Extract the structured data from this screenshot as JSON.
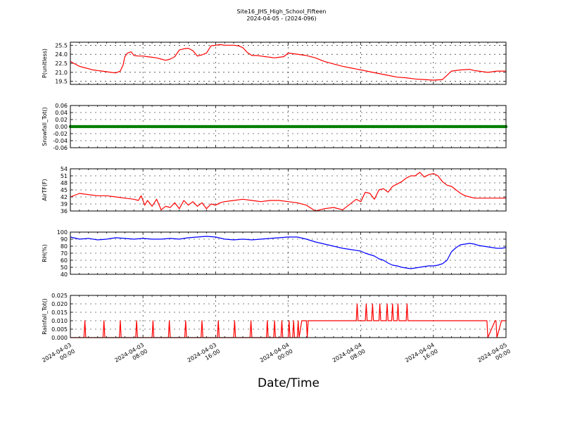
{
  "figure": {
    "title": "Site16_JHS_High_School_Fifteen",
    "subtitle": "2024-04-05 - (2024-096)",
    "xlabel": "Date/Time"
  },
  "x_ticks": [
    "2024-04-03\n00:00",
    "2024-04-03\n08:00",
    "2024-04-03\n16:00",
    "2024-04-04\n00:00",
    "2024-04-04\n08:00",
    "2024-04-04\n16:00",
    "2024-04-05\n00:00"
  ],
  "chart_data": [
    {
      "type": "line",
      "ylabel": "P(unitless)",
      "ylim": [
        19.0,
        26.0
      ],
      "yticks": [
        19.5,
        21.0,
        22.5,
        24.0,
        25.5
      ],
      "grid": true,
      "color": "#ff0000",
      "x": [
        0,
        0.5,
        1,
        1.5,
        2,
        2.5,
        3,
        3.5,
        4,
        4.5,
        5,
        5.5,
        5.8,
        6,
        6.3,
        6.7,
        7,
        7.5,
        8,
        8.5,
        9,
        9.5,
        10,
        10.5,
        11,
        11.5,
        12,
        12.5,
        13,
        13.5,
        14,
        14.5,
        15,
        15.5,
        16,
        16.5,
        17,
        17.5,
        18,
        18.5,
        19,
        19.5,
        20,
        20.5,
        21,
        21.5,
        22,
        22.5,
        23,
        23.5,
        24,
        25,
        26,
        27,
        28,
        29,
        30,
        31,
        32,
        33,
        34,
        35,
        36,
        37,
        38,
        39,
        40,
        41,
        42,
        43,
        44,
        44.5,
        45,
        45.5,
        46,
        46.5,
        47,
        47.5,
        48
      ],
      "y": [
        22.8,
        22.4,
        22.0,
        21.8,
        21.6,
        21.4,
        21.3,
        21.2,
        21.1,
        21.0,
        20.9,
        21.2,
        22.2,
        23.6,
        24.2,
        24.4,
        23.8,
        23.7,
        23.7,
        23.6,
        23.5,
        23.4,
        23.2,
        23.0,
        23.2,
        23.6,
        24.7,
        24.9,
        25.0,
        24.6,
        23.7,
        23.9,
        24.2,
        25.4,
        25.5,
        25.6,
        25.5,
        25.5,
        25.5,
        25.4,
        25.1,
        24.3,
        23.8,
        23.8,
        23.7,
        23.6,
        23.5,
        23.4,
        23.5,
        23.6,
        24.2,
        24.0,
        23.8,
        23.4,
        22.8,
        22.4,
        22.0,
        21.7,
        21.4,
        21.1,
        20.8,
        20.5,
        20.2,
        20.1,
        19.9,
        19.8,
        19.7,
        19.8,
        21.2,
        21.4,
        21.5,
        21.3,
        21.2,
        21.1,
        21.0,
        21.1,
        21.2,
        21.2,
        21.2
      ]
    },
    {
      "type": "scatter",
      "ylabel": "Snowfall_Tot()",
      "ylim": [
        -0.06,
        0.06
      ],
      "yticks": [
        -0.06,
        -0.04,
        -0.02,
        0.0,
        0.02,
        0.04,
        0.06
      ],
      "grid": true,
      "color": "#008000",
      "x_range": [
        0,
        48
      ],
      "constant_value": 0.0
    },
    {
      "type": "line",
      "ylabel": "AirTF(F)",
      "ylim": [
        36,
        54
      ],
      "yticks": [
        36,
        39,
        42,
        45,
        48,
        51,
        54
      ],
      "grid": true,
      "color": "#ff0000",
      "x": [
        0,
        1,
        2,
        3,
        4,
        5,
        6,
        7,
        7.5,
        7.8,
        8.2,
        8.5,
        9,
        9.5,
        10,
        10.5,
        11,
        11.5,
        12,
        12.5,
        13,
        13.5,
        14,
        14.5,
        15,
        15.5,
        16,
        16.5,
        17,
        18,
        19,
        20,
        21,
        22,
        23,
        24,
        25,
        26,
        27,
        28,
        29,
        30,
        30.5,
        31,
        31.5,
        32,
        32.5,
        33,
        33.5,
        34,
        34.5,
        35,
        35.5,
        36,
        36.5,
        37,
        37.5,
        38,
        38.5,
        39,
        39.5,
        40,
        40.5,
        41,
        41.5,
        42,
        42.5,
        43,
        43.5,
        44,
        44.5,
        45,
        45.5,
        46,
        46.5,
        47,
        47.5,
        48
      ],
      "y": [
        42.0,
        43.5,
        43.0,
        42.5,
        42.5,
        42.0,
        41.5,
        41.0,
        40.5,
        42.5,
        38.5,
        40.5,
        38.0,
        41.0,
        36.5,
        38.0,
        37.5,
        39.5,
        37.0,
        40.5,
        38.5,
        40.0,
        38.0,
        39.5,
        37.0,
        39.0,
        38.5,
        39.5,
        40.0,
        40.5,
        41.0,
        40.5,
        40.0,
        40.5,
        40.5,
        40.0,
        39.5,
        38.5,
        36.0,
        37.0,
        37.5,
        36.5,
        38.0,
        39.5,
        41.0,
        40.0,
        44.0,
        43.5,
        41.0,
        45.0,
        45.5,
        44.0,
        46.5,
        47.5,
        48.5,
        50.0,
        51.0,
        51.0,
        52.5,
        50.5,
        51.5,
        52.0,
        51.0,
        48.5,
        47.0,
        46.5,
        45.0,
        43.5,
        42.5,
        42.0,
        41.5,
        41.5,
        41.5,
        41.5,
        41.5,
        41.5,
        41.5,
        41.5
      ]
    },
    {
      "type": "line",
      "ylabel": "RH(%)",
      "ylim": [
        40,
        100
      ],
      "yticks": [
        40,
        50,
        60,
        70,
        80,
        90,
        100
      ],
      "grid": true,
      "color": "#0000ff",
      "x": [
        0,
        1,
        2,
        3,
        4,
        5,
        6,
        7,
        8,
        9,
        10,
        11,
        12,
        13,
        14,
        15,
        16,
        17,
        18,
        19,
        20,
        21,
        22,
        23,
        24,
        25,
        26,
        27,
        28,
        29,
        30,
        31,
        32,
        32.5,
        33,
        33.5,
        34,
        34.5,
        35,
        35.5,
        36,
        36.5,
        37,
        37.5,
        38,
        38.5,
        39,
        39.5,
        40,
        40.5,
        41,
        41.5,
        42,
        42.5,
        43,
        43.5,
        44,
        44.5,
        45,
        45.5,
        46,
        46.5,
        47,
        47.5,
        48
      ],
      "y": [
        93,
        90,
        91,
        89,
        90,
        92,
        91,
        90,
        91,
        90,
        90,
        91,
        90,
        92,
        93,
        94,
        93,
        90,
        89,
        90,
        89,
        90,
        91,
        92,
        93,
        93,
        90,
        86,
        83,
        80,
        77,
        75,
        73,
        70,
        68,
        66,
        62,
        60,
        56,
        53,
        52,
        50,
        49,
        48,
        49,
        50,
        51,
        52,
        52,
        53,
        55,
        60,
        72,
        78,
        82,
        83,
        84,
        83,
        81,
        80,
        79,
        78,
        77,
        77,
        78
      ]
    },
    {
      "type": "line",
      "ylabel": "Rainfall_Tot()",
      "ylim": [
        0.0,
        0.025
      ],
      "yticks": [
        0.0,
        0.005,
        0.01,
        0.015,
        0.02,
        0.025
      ],
      "grid": true,
      "color": "#ff0000",
      "x": [
        0,
        1.5,
        1.6,
        1.7,
        3.6,
        3.7,
        3.8,
        5.4,
        5.5,
        5.6,
        7.2,
        7.3,
        7.4,
        9.0,
        9.1,
        9.2,
        10.8,
        10.9,
        11.0,
        12.6,
        12.7,
        12.8,
        14.4,
        14.5,
        14.6,
        16.2,
        16.3,
        16.4,
        18.0,
        18.1,
        18.2,
        19.8,
        19.9,
        20.0,
        21.6,
        21.7,
        21.8,
        22.4,
        22.5,
        22.6,
        23.2,
        23.3,
        23.4,
        24.0,
        24.1,
        24.2,
        24.5,
        24.6,
        24.7,
        25.0,
        25.1,
        25.2,
        25.5,
        26.0,
        26.1,
        26.2,
        26.5,
        27.0,
        31.5,
        31.6,
        31.7,
        32.5,
        32.6,
        32.7,
        33.2,
        33.3,
        33.4,
        34.0,
        34.1,
        34.2,
        34.8,
        34.9,
        35.0,
        35.4,
        35.5,
        35.6,
        36.0,
        36.1,
        36.2,
        37.0,
        37.1,
        37.2,
        38.0,
        38.1,
        38.2,
        39.0,
        41.0,
        41.1,
        41.2,
        42.0,
        42.1,
        42.2,
        43.0,
        43.1,
        43.2,
        44.0,
        44.1,
        44.2,
        45.0,
        45.1,
        45.2,
        45.8,
        45.9,
        46.0,
        46.8,
        46.9,
        47.0,
        47.5,
        48.0
      ],
      "y": [
        0,
        0,
        0.01,
        0,
        0,
        0.01,
        0,
        0,
        0.01,
        0,
        0,
        0.01,
        0,
        0,
        0.01,
        0,
        0,
        0.01,
        0,
        0,
        0.01,
        0,
        0,
        0.01,
        0,
        0,
        0.01,
        0,
        0,
        0.01,
        0,
        0,
        0.01,
        0,
        0,
        0.01,
        0,
        0,
        0.01,
        0,
        0,
        0.01,
        0,
        0,
        0.01,
        0,
        0,
        0.01,
        0,
        0,
        0.01,
        0,
        0.01,
        0.01,
        0,
        0.01,
        0.01,
        0.01,
        0.01,
        0.02,
        0.01,
        0.01,
        0.02,
        0.01,
        0.01,
        0.02,
        0.01,
        0.01,
        0.02,
        0.01,
        0.01,
        0.02,
        0.01,
        0.01,
        0.02,
        0.01,
        0.01,
        0.02,
        0.01,
        0.01,
        0.02,
        0.01,
        0.01,
        0.01,
        0.01,
        0.01,
        0.01,
        0.01,
        0.01,
        0.01,
        0.01,
        0.01,
        0.01,
        0.01,
        0.01,
        0.01,
        0.01,
        0.01,
        0.01,
        0.01,
        0.01,
        0.01,
        0.01,
        0,
        0.01,
        0.01,
        0,
        0.01,
        0.01
      ]
    }
  ]
}
